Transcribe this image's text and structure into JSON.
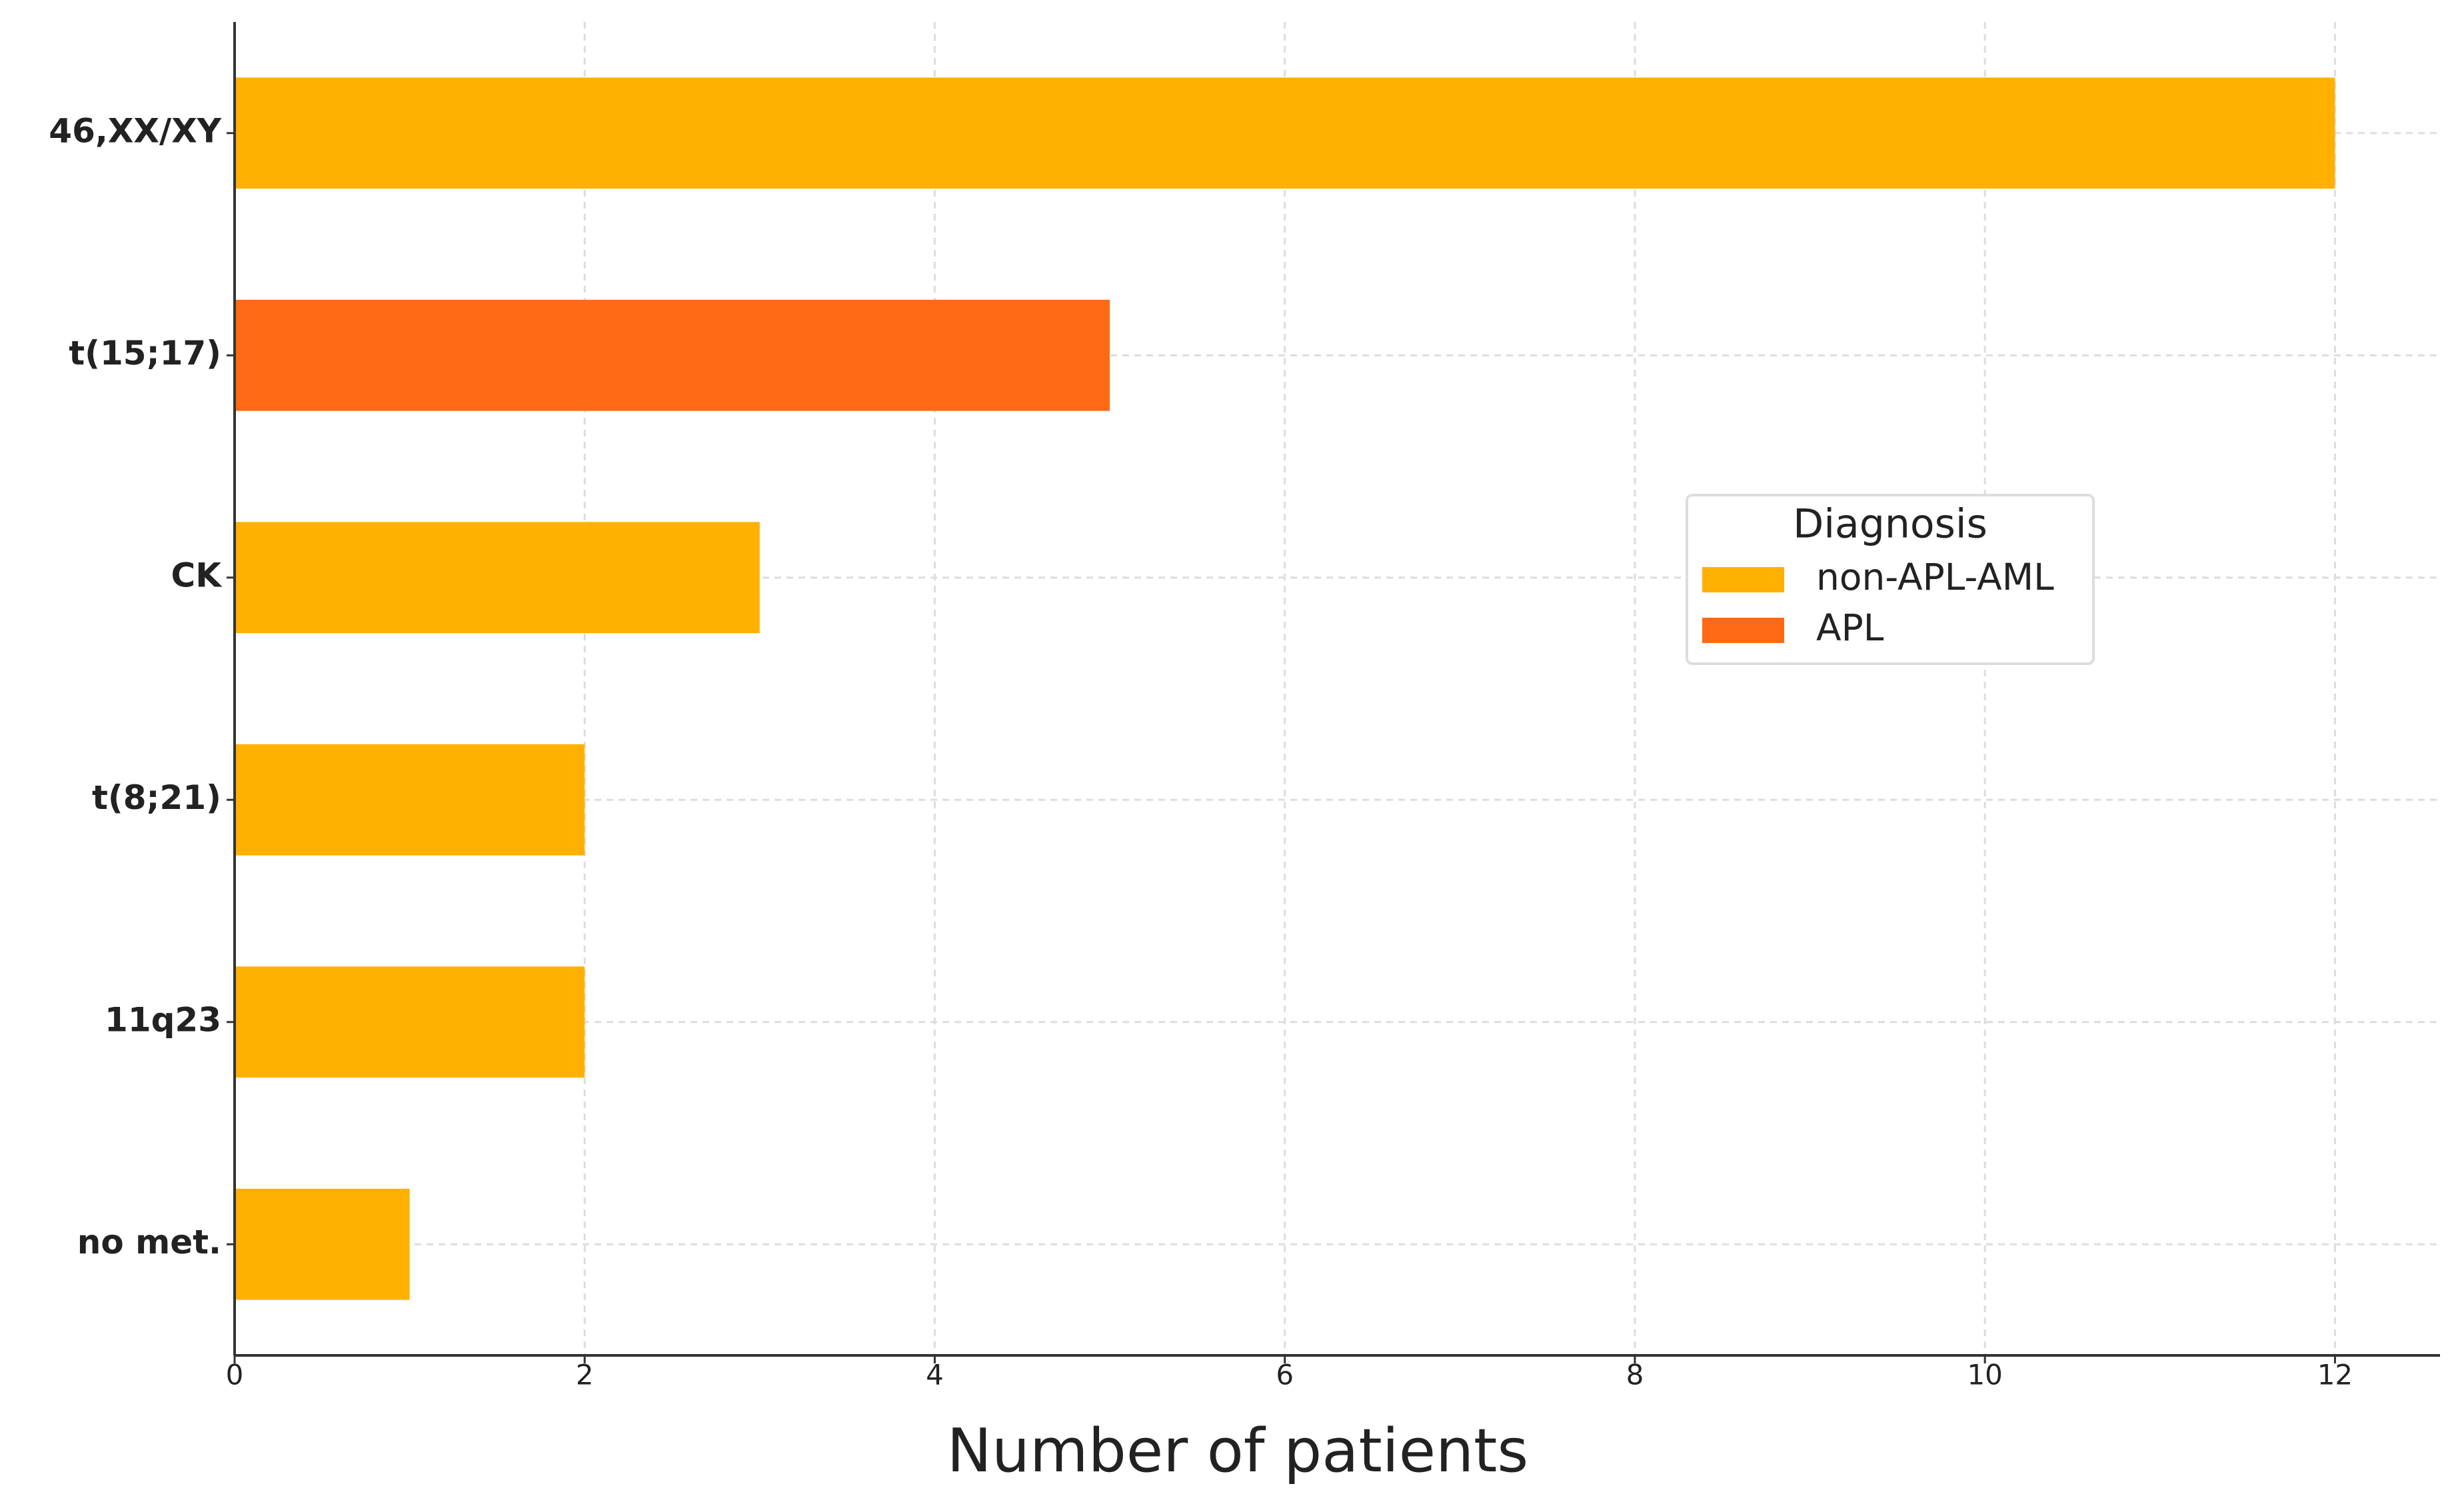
{
  "chart_data": {
    "type": "barh",
    "categories": [
      "46,XX/XY",
      "t(15;17)",
      "CK",
      "t(8;21)",
      "11q23",
      "no met."
    ],
    "series": [
      {
        "name": "non-APL-AML",
        "color": "#FFB000",
        "values": [
          12,
          null,
          3,
          2,
          2,
          1
        ]
      },
      {
        "name": "APL",
        "color": "#FE6A14",
        "values": [
          null,
          5,
          null,
          null,
          null,
          null
        ]
      }
    ],
    "x_label": "Number of patients",
    "xlim": [
      0,
      12.6
    ],
    "xticks": [
      0,
      2,
      4,
      6,
      8,
      10,
      12
    ],
    "grid": true,
    "legend_title": "Diagnosis",
    "legend_loc": "center right"
  }
}
